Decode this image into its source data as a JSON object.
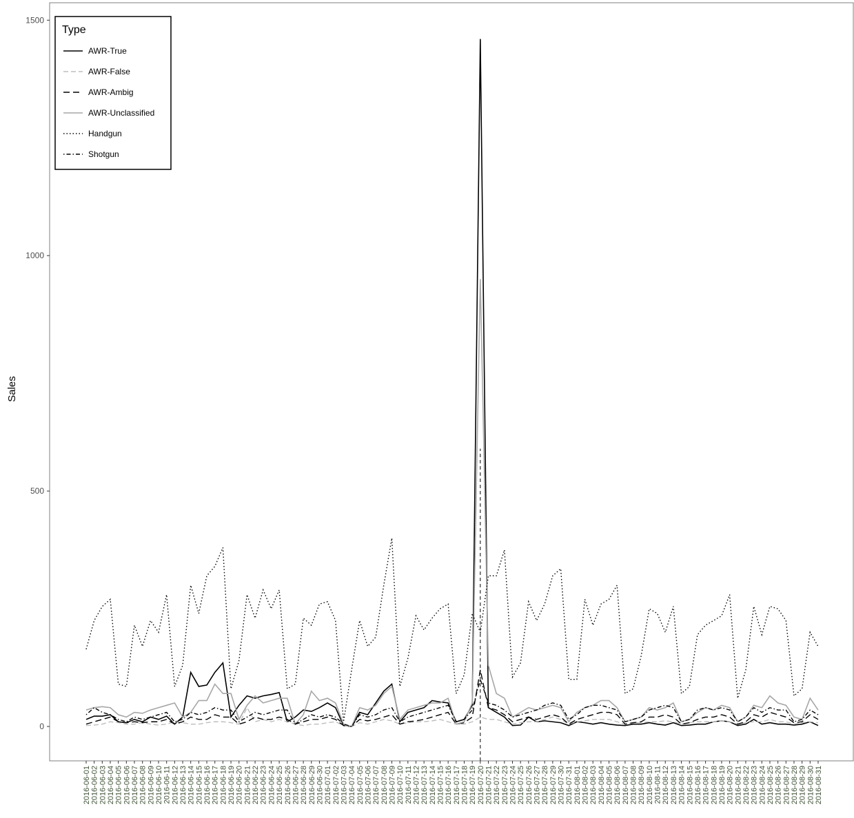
{
  "chart_data": {
    "type": "line",
    "y_label": "Sales",
    "legend_title": "Type",
    "legend_position": "top-left",
    "categories": [
      "2016-06-01",
      "2016-06-02",
      "2016-06-03",
      "2016-06-04",
      "2016-06-05",
      "2016-06-06",
      "2016-06-07",
      "2016-06-08",
      "2016-06-09",
      "2016-06-10",
      "2016-06-11",
      "2016-06-12",
      "2016-06-13",
      "2016-06-14",
      "2016-06-15",
      "2016-06-16",
      "2016-06-17",
      "2016-06-18",
      "2016-06-19",
      "2016-06-20",
      "2016-06-21",
      "2016-06-22",
      "2016-06-23",
      "2016-06-24",
      "2016-06-25",
      "2016-06-26",
      "2016-06-27",
      "2016-06-28",
      "2016-06-29",
      "2016-06-30",
      "2016-07-01",
      "2016-07-02",
      "2016-07-03",
      "2016-07-04",
      "2016-07-05",
      "2016-07-06",
      "2016-07-07",
      "2016-07-08",
      "2016-07-09",
      "2016-07-10",
      "2016-07-11",
      "2016-07-12",
      "2016-07-13",
      "2016-07-14",
      "2016-07-15",
      "2016-07-16",
      "2016-07-17",
      "2016-07-18",
      "2016-07-19",
      "2016-07-20",
      "2016-07-21",
      "2016-07-22",
      "2016-07-23",
      "2016-07-24",
      "2016-07-25",
      "2016-07-26",
      "2016-07-27",
      "2016-07-28",
      "2016-07-29",
      "2016-07-30",
      "2016-07-31",
      "2016-08-01",
      "2016-08-02",
      "2016-08-03",
      "2016-08-04",
      "2016-08-05",
      "2016-08-06",
      "2016-08-07",
      "2016-08-08",
      "2016-08-09",
      "2016-08-10",
      "2016-08-11",
      "2016-08-12",
      "2016-08-13",
      "2016-08-14",
      "2016-08-15",
      "2016-08-16",
      "2016-08-17",
      "2016-08-18",
      "2016-08-19",
      "2016-08-20",
      "2016-08-21",
      "2016-08-22",
      "2016-08-23",
      "2016-08-24",
      "2016-08-25",
      "2016-08-26",
      "2016-08-27",
      "2016-08-28",
      "2016-08-29",
      "2016-08-30",
      "2016-08-31"
    ],
    "series": [
      {
        "name": "AWR-True",
        "color": "#000000",
        "linetype": "solid",
        "values": [
          15,
          22,
          22,
          25,
          10,
          8,
          15,
          10,
          20,
          15,
          22,
          5,
          20,
          115,
          85,
          88,
          115,
          135,
          20,
          45,
          65,
          60,
          65,
          68,
          72,
          10,
          20,
          35,
          32,
          40,
          50,
          40,
          2,
          0,
          30,
          25,
          50,
          75,
          90,
          10,
          30,
          35,
          40,
          55,
          52,
          50,
          10,
          15,
          45,
          1460,
          40,
          30,
          20,
          2,
          3,
          20,
          10,
          12,
          10,
          8,
          2,
          10,
          8,
          5,
          8,
          5,
          3,
          2,
          5,
          5,
          8,
          5,
          3,
          8,
          2,
          3,
          5,
          5,
          10,
          12,
          10,
          2,
          5,
          15,
          5,
          8,
          5,
          5,
          3,
          5,
          10,
          2
        ]
      },
      {
        "name": "AWR-False",
        "color": "#bdbdbd",
        "linetype": "dashed",
        "values": [
          2,
          3,
          5,
          10,
          8,
          5,
          5,
          8,
          5,
          3,
          5,
          10,
          8,
          5,
          5,
          8,
          10,
          10,
          8,
          5,
          40,
          10,
          15,
          10,
          15,
          10,
          5,
          2,
          5,
          5,
          8,
          10,
          2,
          0,
          8,
          5,
          10,
          15,
          12,
          5,
          8,
          10,
          10,
          12,
          15,
          10,
          5,
          5,
          10,
          20,
          15,
          15,
          10,
          5,
          8,
          10,
          10,
          15,
          20,
          15,
          5,
          10,
          12,
          15,
          15,
          15,
          10,
          5,
          8,
          8,
          10,
          10,
          12,
          10,
          5,
          8,
          10,
          10,
          10,
          12,
          10,
          5,
          8,
          10,
          10,
          15,
          10,
          10,
          5,
          8,
          10,
          8
        ]
      },
      {
        "name": "AWR-Ambig",
        "color": "#000000",
        "linetype": "longdash",
        "values": [
          5,
          10,
          15,
          20,
          10,
          8,
          10,
          8,
          10,
          10,
          15,
          5,
          10,
          20,
          15,
          15,
          25,
          20,
          20,
          5,
          10,
          20,
          15,
          15,
          20,
          15,
          5,
          10,
          15,
          15,
          20,
          15,
          2,
          0,
          15,
          12,
          15,
          20,
          25,
          5,
          10,
          12,
          15,
          20,
          25,
          30,
          5,
          8,
          20,
          120,
          40,
          35,
          25,
          10,
          15,
          20,
          15,
          20,
          25,
          20,
          5,
          15,
          20,
          25,
          30,
          30,
          25,
          5,
          8,
          10,
          20,
          20,
          25,
          20,
          5,
          8,
          15,
          20,
          20,
          25,
          20,
          5,
          10,
          25,
          20,
          30,
          25,
          20,
          8,
          10,
          25,
          15
        ]
      },
      {
        "name": "AWR-Unclassified",
        "color": "#a6a6a6",
        "linetype": "solid",
        "values": [
          35,
          40,
          42,
          40,
          25,
          20,
          30,
          28,
          35,
          40,
          45,
          50,
          20,
          30,
          55,
          55,
          90,
          70,
          70,
          15,
          45,
          65,
          50,
          55,
          60,
          60,
          5,
          25,
          75,
          55,
          60,
          50,
          5,
          0,
          40,
          35,
          45,
          70,
          85,
          15,
          35,
          40,
          45,
          50,
          50,
          60,
          5,
          10,
          50,
          950,
          130,
          70,
          60,
          20,
          30,
          40,
          35,
          40,
          45,
          40,
          10,
          30,
          40,
          45,
          55,
          55,
          40,
          10,
          15,
          20,
          40,
          35,
          40,
          50,
          10,
          15,
          30,
          40,
          35,
          45,
          40,
          10,
          20,
          45,
          40,
          65,
          50,
          45,
          20,
          15,
          60,
          35
        ]
      },
      {
        "name": "Handgun",
        "color": "#000000",
        "linetype": "dotted",
        "values": [
          164,
          225,
          255,
          270,
          90,
          85,
          215,
          170,
          225,
          200,
          280,
          85,
          130,
          300,
          240,
          320,
          340,
          380,
          80,
          140,
          280,
          230,
          290,
          250,
          290,
          80,
          90,
          230,
          215,
          260,
          265,
          225,
          10,
          120,
          225,
          170,
          190,
          300,
          400,
          85,
          145,
          235,
          205,
          230,
          250,
          260,
          70,
          110,
          240,
          200,
          320,
          320,
          375,
          105,
          135,
          265,
          225,
          260,
          320,
          335,
          100,
          100,
          270,
          215,
          260,
          270,
          300,
          70,
          80,
          150,
          250,
          240,
          200,
          255,
          70,
          85,
          195,
          215,
          225,
          235,
          280,
          60,
          120,
          255,
          195,
          255,
          250,
          225,
          65,
          80,
          200,
          170
        ]
      },
      {
        "name": "Shotgun",
        "color": "#000000",
        "linetype": "dotdash",
        "values": [
          25,
          40,
          30,
          25,
          15,
          10,
          20,
          15,
          20,
          25,
          30,
          10,
          15,
          30,
          25,
          30,
          40,
          35,
          35,
          10,
          20,
          30,
          25,
          30,
          35,
          35,
          5,
          15,
          25,
          20,
          25,
          20,
          5,
          0,
          25,
          20,
          25,
          35,
          40,
          10,
          20,
          25,
          30,
          35,
          40,
          45,
          10,
          15,
          35,
          100,
          50,
          45,
          35,
          20,
          25,
          30,
          35,
          45,
          50,
          45,
          15,
          25,
          40,
          45,
          45,
          40,
          35,
          10,
          15,
          20,
          35,
          40,
          45,
          40,
          10,
          15,
          35,
          40,
          35,
          40,
          35,
          10,
          20,
          40,
          30,
          40,
          35,
          35,
          10,
          15,
          35,
          25
        ]
      }
    ],
    "vline": {
      "x": "2016-07-20",
      "top": 590
    },
    "ylim": [
      -73,
      1537
    ],
    "yticks": [
      0,
      500,
      1000,
      1500
    ],
    "grid": false
  }
}
